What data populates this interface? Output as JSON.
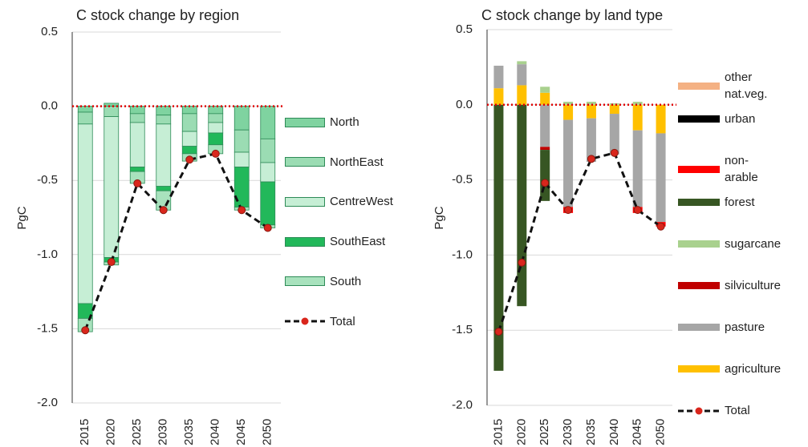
{
  "chart_data": [
    {
      "type": "bar",
      "stacked": true,
      "title": "C stock change by region",
      "y_label": "PgC",
      "categories": [
        "2015",
        "2020",
        "2025",
        "2030",
        "2035",
        "2040",
        "2045",
        "2050"
      ],
      "ylim": [
        -2,
        0.5
      ],
      "yticks": [
        {
          "value": -2,
          "label": "-2.0"
        },
        -1.5,
        {
          "value": -1,
          "label": "-1.0"
        },
        -0.5,
        {
          "value": 0,
          "label": "0.0"
        },
        0.5
      ],
      "grid": true,
      "series": [
        {
          "name": "North",
          "color": "#7fd3a0",
          "values": [
            -0.04,
            0.02,
            -0.05,
            -0.06,
            -0.05,
            -0.05,
            -0.16,
            -0.22
          ]
        },
        {
          "name": "NorthEast",
          "color": "#9bdcb3",
          "values": [
            -0.08,
            -0.07,
            -0.06,
            -0.06,
            -0.12,
            -0.06,
            -0.15,
            -0.16
          ]
        },
        {
          "name": "CentreWest",
          "color": "#c6eed5",
          "values": [
            -1.21,
            -0.95,
            -0.3,
            -0.42,
            -0.1,
            -0.07,
            -0.1,
            -0.13
          ]
        },
        {
          "name": "SouthEast",
          "color": "#22b85a",
          "values": [
            -0.1,
            -0.03,
            -0.03,
            -0.03,
            -0.05,
            -0.08,
            -0.27,
            -0.29
          ]
        },
        {
          "name": "South",
          "color": "#a8e2bd",
          "values": [
            -0.09,
            -0.02,
            -0.08,
            -0.13,
            -0.05,
            -0.06,
            -0.02,
            -0.02
          ]
        },
        {
          "name": "Total",
          "type": "line",
          "color": "#d9261c",
          "values": [
            -1.51,
            -1.05,
            -0.52,
            -0.7,
            -0.36,
            -0.32,
            -0.7,
            -0.82
          ]
        }
      ]
    },
    {
      "type": "bar",
      "stacked": true,
      "title": "C stock change by land type",
      "y_label": "PgC",
      "categories": [
        "2015",
        "2020",
        "2025",
        "2030",
        "2035",
        "2040",
        "2045",
        "2050"
      ],
      "ylim": [
        -2,
        0.5
      ],
      "yticks": [
        {
          "value": -2,
          "label": "-2.0"
        },
        -1.5,
        {
          "value": -1,
          "label": "-1.0"
        },
        -0.5,
        {
          "value": 0,
          "label": "0.0"
        },
        0.5
      ],
      "grid": true,
      "legend_reversed": true,
      "series": [
        {
          "name": "agriculture",
          "color": "#ffc000",
          "values": [
            0.11,
            0.13,
            0.08,
            -0.1,
            -0.09,
            -0.06,
            -0.17,
            -0.19
          ]
        },
        {
          "name": "pasture",
          "color": "#a6a6a6",
          "values": [
            0.15,
            0.14,
            -0.28,
            -0.58,
            -0.29,
            -0.27,
            -0.51,
            -0.59
          ]
        },
        {
          "name": "silviculture",
          "color": "#c00000",
          "values": [
            0,
            0,
            -0.02,
            0,
            0,
            0,
            0,
            0
          ]
        },
        {
          "name": "sugarcane",
          "color": "#a9d18e",
          "values": [
            0,
            0.02,
            0.04,
            0.02,
            0.02,
            0.01,
            0.02,
            0
          ]
        },
        {
          "name": "forest",
          "color": "#375623",
          "values": [
            -1.77,
            -1.34,
            -0.34,
            0,
            0,
            0,
            0,
            0
          ]
        },
        {
          "name": "non-arable",
          "color": "#ff0000",
          "values": [
            0,
            0,
            0,
            -0.04,
            0,
            0,
            -0.04,
            -0.03
          ]
        },
        {
          "name": "urban",
          "color": "#000000",
          "values": [
            0,
            0,
            0,
            0,
            0,
            0,
            0,
            0
          ]
        },
        {
          "name": "other nat.veg.",
          "color": "#f4b183",
          "values": [
            0,
            0,
            0,
            0,
            0,
            0,
            0,
            0
          ]
        },
        {
          "name": "Total",
          "type": "line",
          "color": "#d9261c",
          "values": [
            -1.51,
            -1.05,
            -0.52,
            -0.7,
            -0.36,
            -0.32,
            -0.7,
            -0.81
          ]
        }
      ]
    }
  ]
}
